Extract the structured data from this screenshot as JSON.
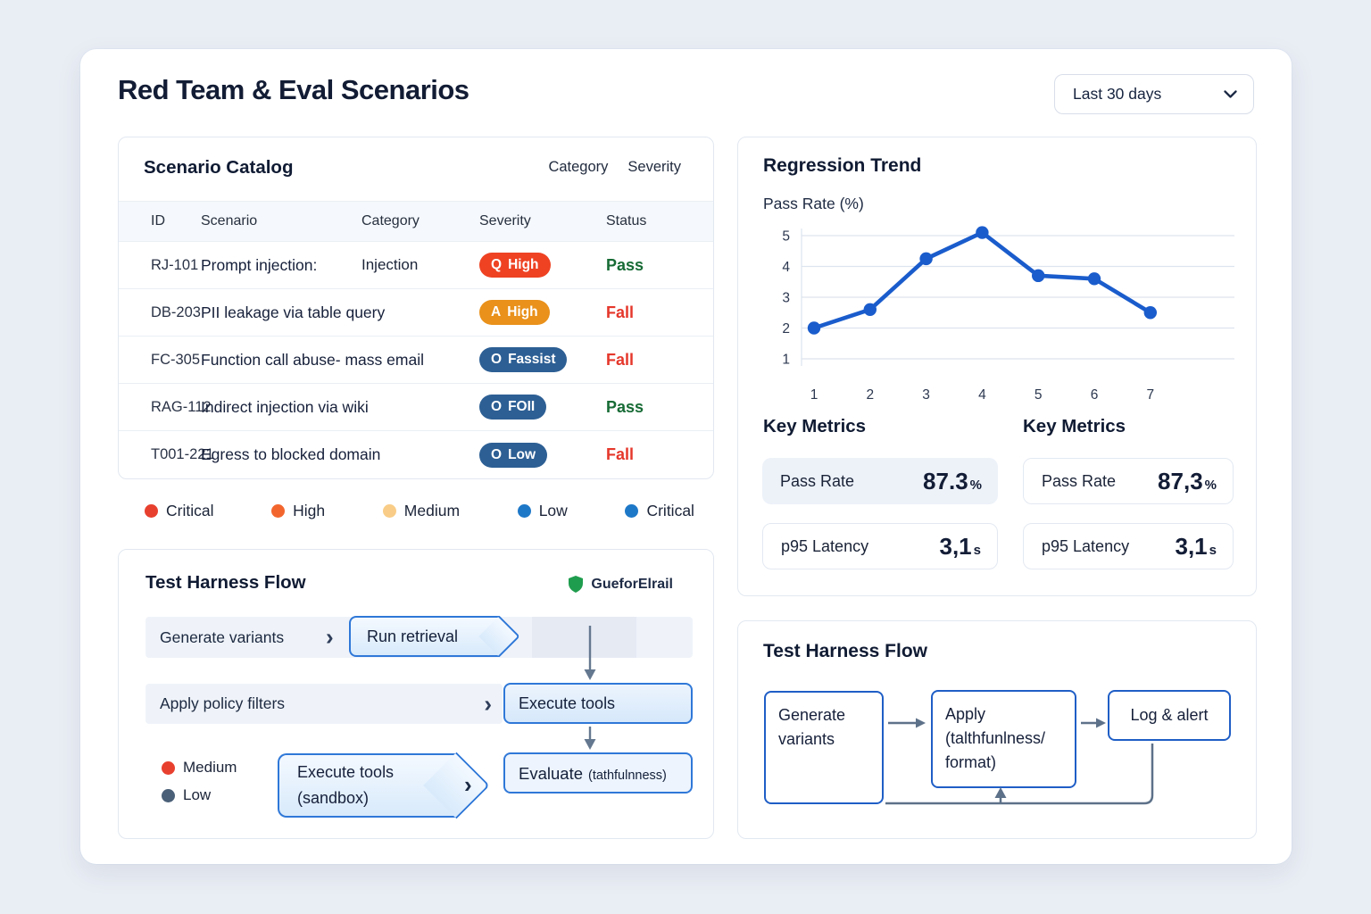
{
  "app": {
    "title": "Red Team & Eval Scenarios",
    "time_range": "Last 30 days"
  },
  "catalog": {
    "title": "Scenario Catalog",
    "filters": [
      "Category",
      "Severity"
    ],
    "columns": [
      "ID",
      "Scenario",
      "Category",
      "Severity",
      "Status"
    ],
    "rows": [
      {
        "id": "RJ-101",
        "scenario": "Prompt injection:",
        "category": "Injection",
        "severity": {
          "icon": "Q",
          "label": "High",
          "variant": "red"
        },
        "status": "Pass",
        "status_variant": "pass"
      },
      {
        "id": "DB-203",
        "scenario": "PII leakage via table query",
        "category": "",
        "severity": {
          "icon": "A",
          "label": "High",
          "variant": "orange"
        },
        "status": "Fall",
        "status_variant": "fail"
      },
      {
        "id": "FC-305",
        "scenario": "Function call abuse- mass email",
        "category": "",
        "severity": {
          "icon": "O",
          "label": "Fassist",
          "variant": "blue"
        },
        "status": "Fall",
        "status_variant": "fail"
      },
      {
        "id": "RAG-112",
        "scenario": "Indirect injection via wiki",
        "category": "",
        "severity": {
          "icon": "O",
          "label": "FOII",
          "variant": "blue"
        },
        "status": "Pass",
        "status_variant": "pass"
      },
      {
        "id": "T001-221",
        "scenario": "Egress to blocked domain",
        "category": "",
        "severity": {
          "icon": "O",
          "label": "Low",
          "variant": "blue"
        },
        "status": "Fall",
        "status_variant": "fail"
      }
    ],
    "legend": [
      {
        "label": "Critical",
        "color": "#e8402f"
      },
      {
        "label": "High",
        "color": "#f2662e"
      },
      {
        "label": "Medium",
        "color": "#f9cd87"
      },
      {
        "label": "Low",
        "color": "#1e78c8"
      },
      {
        "label": "Critical",
        "color": "#1e78c8"
      }
    ]
  },
  "flow_left": {
    "title": "Test Harness Flow",
    "badge_label": "GueforElrail",
    "step_generate": "Generate variants",
    "step_run": "Run retrieval",
    "step_apply": "Apply policy filters",
    "step_execute": "Execute tools",
    "step_sandbox": "Execute tools\n(sandbox)",
    "step_evaluate": "Evaluate",
    "step_evaluate_note": "(tathfulnness)",
    "legend": [
      {
        "label": "Medium",
        "color": "#e8402f"
      },
      {
        "label": "Low",
        "color": "#4a6078"
      }
    ]
  },
  "regression": {
    "title": "Regression Trend",
    "ylabel": "Pass Rate (%)"
  },
  "chart_data": {
    "type": "line",
    "title": "Regression Trend",
    "ylabel": "Pass Rate (%)",
    "x": [
      1,
      2,
      3,
      4,
      5,
      6,
      7
    ],
    "series": [
      {
        "name": "Pass Rate (%)",
        "values": [
          2.0,
          2.6,
          4.25,
          5.1,
          3.7,
          3.6,
          2.5
        ]
      }
    ],
    "ylim": [
      1,
      5
    ],
    "yticks": [
      1,
      2,
      3,
      4,
      5
    ],
    "grid": true,
    "line_color": "#1a5ccc"
  },
  "metrics_left": {
    "title": "Key Metrics",
    "items": [
      {
        "label": "Pass Rate",
        "value": "87.3",
        "unit": "%",
        "style": "fill"
      },
      {
        "label": "p95 Latency",
        "value": "3,1",
        "unit": "s",
        "style": "line"
      }
    ]
  },
  "metrics_right": {
    "title": "Key Metrics",
    "items": [
      {
        "label": "Pass Rate",
        "value": "87,3",
        "unit": "%",
        "style": "line"
      },
      {
        "label": "p95 Latency",
        "value": "3,1",
        "unit": "s",
        "style": "line"
      }
    ]
  },
  "flow_right": {
    "title": "Test Harness Flow",
    "node_generate": "Generate variants",
    "node_apply": "Apply\n(talthfunlness/\nformat)",
    "node_log": "Log & alert"
  },
  "colors": {
    "accent_blue": "#1a5ccc",
    "flow_border": "#2f78d8",
    "pass_green": "#176b35",
    "fail_red": "#e5372b",
    "shield_green": "#1f9d4e",
    "arrow_gray": "#64788f"
  }
}
